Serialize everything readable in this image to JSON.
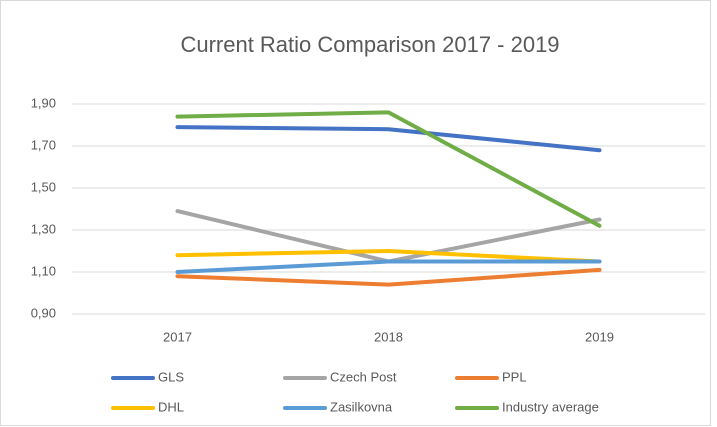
{
  "chart_data": {
    "type": "line",
    "title": "Current Ratio Comparison 2017 - 2019",
    "categories": [
      "2017",
      "2018",
      "2019"
    ],
    "series": [
      {
        "name": "GLS",
        "color": "#4472c4",
        "values": [
          1.79,
          1.78,
          1.68
        ]
      },
      {
        "name": "Czech Post",
        "color": "#a5a5a5",
        "values": [
          1.39,
          1.15,
          1.35
        ]
      },
      {
        "name": "PPL",
        "color": "#ed7d31",
        "values": [
          1.08,
          1.04,
          1.11
        ]
      },
      {
        "name": "DHL",
        "color": "#ffc000",
        "values": [
          1.18,
          1.2,
          1.15
        ]
      },
      {
        "name": "Zasilkovna",
        "color": "#5b9bd5",
        "values": [
          1.1,
          1.15,
          1.15
        ]
      },
      {
        "name": "Industry average",
        "color": "#70ad47",
        "values": [
          1.84,
          1.86,
          1.32
        ]
      }
    ],
    "ylim": [
      0.9,
      1.9
    ],
    "yticks": [
      {
        "value": 0.9,
        "label": "0,90"
      },
      {
        "value": 1.1,
        "label": "1,10"
      },
      {
        "value": 1.3,
        "label": "1,30"
      },
      {
        "value": 1.5,
        "label": "1,50"
      },
      {
        "value": 1.7,
        "label": "1,70"
      },
      {
        "value": 1.9,
        "label": "1,90"
      }
    ],
    "grid": true
  }
}
